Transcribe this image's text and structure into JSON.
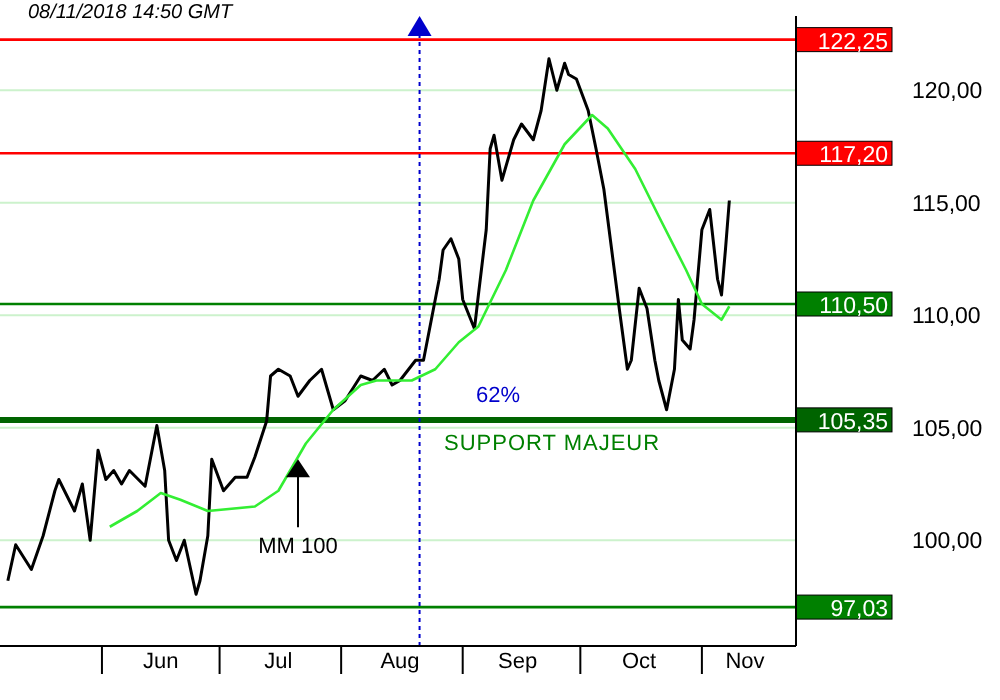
{
  "chart_data": {
    "type": "line",
    "title": "08/11/2018 14:50 GMT",
    "xlim": [
      "2018-05-06",
      "2018-11-25"
    ],
    "xticks": [
      {
        "value": "2018-06-01",
        "label": null
      },
      {
        "value": "2018-06-16",
        "label": "Jun"
      },
      {
        "value": "2018-07-01",
        "label": null
      },
      {
        "value": "2018-07-16",
        "label": "Jul"
      },
      {
        "value": "2018-08-01",
        "label": null
      },
      {
        "value": "2018-08-16",
        "label": "Aug"
      },
      {
        "value": "2018-09-01",
        "label": null
      },
      {
        "value": "2018-09-15",
        "label": "Sep"
      },
      {
        "value": "2018-10-01",
        "label": null
      },
      {
        "value": "2018-10-16",
        "label": "Oct"
      },
      {
        "value": "2018-11-01",
        "label": null
      },
      {
        "value": "2018-11-12",
        "label": "Nov"
      }
    ],
    "ylim": [
      95.3,
      123.3
    ],
    "yticks": [
      {
        "value": 100,
        "label": "100,00"
      },
      {
        "value": 105,
        "label": "105,00"
      },
      {
        "value": 110,
        "label": "110,00"
      },
      {
        "value": 115,
        "label": "115,00"
      },
      {
        "value": 120,
        "label": "120,00"
      }
    ],
    "grid": "y",
    "series": [
      {
        "color": "#000000",
        "x": [
          "2018-05-08",
          "2018-05-10",
          "2018-05-14",
          "2018-05-17",
          "2018-05-20",
          "2018-05-21",
          "2018-05-25",
          "2018-05-27",
          "2018-05-29",
          "2018-05-31",
          "2018-06-02",
          "2018-06-04",
          "2018-06-06",
          "2018-06-08",
          "2018-06-12",
          "2018-06-15",
          "2018-06-17",
          "2018-06-18",
          "2018-06-20",
          "2018-06-22",
          "2018-06-25",
          "2018-06-26",
          "2018-06-28",
          "2018-06-29",
          "2018-07-02",
          "2018-07-05",
          "2018-07-08",
          "2018-07-10",
          "2018-07-13",
          "2018-07-14",
          "2018-07-16",
          "2018-07-19",
          "2018-07-21",
          "2018-07-24",
          "2018-07-27",
          "2018-07-30",
          "2018-08-02",
          "2018-08-06",
          "2018-08-09",
          "2018-08-12",
          "2018-08-14",
          "2018-08-16",
          "2018-08-20",
          "2018-08-22",
          "2018-08-24",
          "2018-08-26",
          "2018-08-27",
          "2018-08-29",
          "2018-08-31",
          "2018-09-01",
          "2018-09-04",
          "2018-09-05",
          "2018-09-07",
          "2018-09-08",
          "2018-09-09",
          "2018-09-11",
          "2018-09-14",
          "2018-09-16",
          "2018-09-19",
          "2018-09-21",
          "2018-09-23",
          "2018-09-25",
          "2018-09-27",
          "2018-09-28",
          "2018-09-30",
          "2018-10-03",
          "2018-10-05",
          "2018-10-07",
          "2018-10-09",
          "2018-10-11",
          "2018-10-13",
          "2018-10-14",
          "2018-10-16",
          "2018-10-18",
          "2018-10-20",
          "2018-10-21",
          "2018-10-23",
          "2018-10-25",
          "2018-10-26",
          "2018-10-27",
          "2018-10-29",
          "2018-10-30",
          "2018-11-01",
          "2018-11-03",
          "2018-11-05",
          "2018-11-06",
          "2018-11-07",
          "2018-11-08"
        ],
        "values": [
          98.2,
          99.8,
          98.7,
          100.2,
          102.2,
          102.7,
          101.3,
          102.5,
          100,
          104,
          102.7,
          103.1,
          102.5,
          103.1,
          102.4,
          105.1,
          103.1,
          100,
          99.1,
          100,
          97.6,
          98.2,
          100.2,
          103.6,
          102.2,
          102.8,
          102.8,
          103.7,
          105.3,
          107.3,
          107.6,
          107.3,
          106.4,
          107.1,
          107.6,
          105.8,
          106.2,
          107.3,
          107.1,
          107.6,
          106.9,
          107.1,
          108,
          108,
          109.8,
          111.6,
          112.9,
          113.4,
          112.5,
          110.7,
          109.4,
          110.9,
          113.8,
          117.4,
          118,
          116,
          117.8,
          118.5,
          117.8,
          119.1,
          121.4,
          120,
          121.2,
          120.7,
          120.5,
          119.1,
          117.4,
          115.6,
          112.9,
          110.2,
          107.6,
          108,
          111.2,
          110.3,
          108,
          107.1,
          105.8,
          107.6,
          110.7,
          108.9,
          108.5,
          109.8,
          113.8,
          114.7,
          111.6,
          110.9,
          112.9,
          115.1
        ]
      },
      {
        "color": "#33ee33",
        "x": [
          "2018-06-03",
          "2018-06-10",
          "2018-06-16",
          "2018-06-21",
          "2018-06-28",
          "2018-07-10",
          "2018-07-16",
          "2018-07-23",
          "2018-07-30",
          "2018-08-06",
          "2018-08-10",
          "2018-08-19",
          "2018-08-25",
          "2018-08-31",
          "2018-09-05",
          "2018-09-12",
          "2018-09-19",
          "2018-09-27",
          "2018-10-04",
          "2018-10-08",
          "2018-10-15",
          "2018-10-21",
          "2018-10-28",
          "2018-11-01",
          "2018-11-06",
          "2018-11-08"
        ],
        "values": [
          100.6,
          101.3,
          102.1,
          101.8,
          101.3,
          101.5,
          102.2,
          104.3,
          105.8,
          106.9,
          107.1,
          107.1,
          107.6,
          108.8,
          109.5,
          112,
          115.1,
          117.6,
          118.9,
          118.3,
          116.5,
          114.4,
          112,
          110.5,
          109.8,
          110.4
        ]
      }
    ],
    "ref_lines": [
      {
        "axis": "y",
        "value": 122.25,
        "label": "122,25",
        "color": "#ff0000"
      },
      {
        "axis": "y",
        "value": 117.2,
        "label": "117,20",
        "color": "#ff0000"
      },
      {
        "axis": "y",
        "value": 110.5,
        "label": "110,50",
        "color": "#008000"
      },
      {
        "axis": "y",
        "value": 105.35,
        "label": "105,35",
        "color": "#006400"
      },
      {
        "axis": "y",
        "value": 97.03,
        "label": "97,03",
        "color": "#008000"
      },
      {
        "axis": "x",
        "value": "2018-08-21",
        "color": "#0000cc",
        "line_style": "dotted"
      }
    ],
    "annotations": [
      "62%",
      "SUPPORT MAJEUR",
      {
        "text": "MM 100",
        "x": "2018-07-21",
        "y": 103.6
      }
    ]
  }
}
